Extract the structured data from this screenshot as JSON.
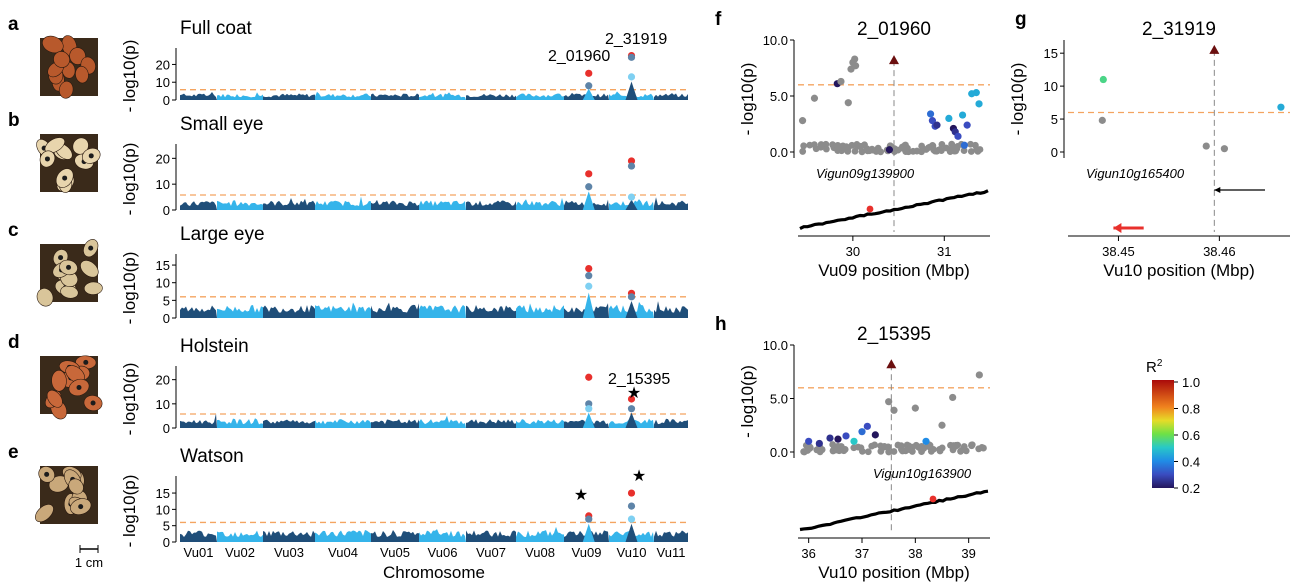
{
  "colors": {
    "chrom_dark": "#1f4e79",
    "chrom_light": "#35b4ea",
    "threshold": "#f4a460",
    "lead": "#e8302c",
    "peak_marker": "#6b0f0f",
    "gray_points": "#8c8c8c",
    "gene_track": "#000000"
  },
  "manhattan": {
    "ylabel": "- log10(p)",
    "xlabel": "Chromosome",
    "chromosomes": [
      "Vu01",
      "Vu02",
      "Vu03",
      "Vu04",
      "Vu05",
      "Vu06",
      "Vu07",
      "Vu08",
      "Vu09",
      "Vu10",
      "Vu11"
    ],
    "scale_bar": "1 cm",
    "panels": [
      {
        "letter": "a",
        "title": "Full coat",
        "seed_color": "#b8592c",
        "ticks": [
          "0",
          "10",
          "20"
        ],
        "annotations": [
          "2_01960",
          "2_31919"
        ]
      },
      {
        "letter": "b",
        "title": "Small eye",
        "seed_color": "#e8d5ad",
        "ticks": [
          "0",
          "10",
          "20"
        ],
        "annotations": []
      },
      {
        "letter": "c",
        "title": "Large eye",
        "seed_color": "#d9c59a",
        "ticks": [
          "0",
          "5",
          "10",
          "15"
        ],
        "annotations": []
      },
      {
        "letter": "d",
        "title": "Holstein",
        "seed_color": "#c8683a",
        "ticks": [
          "0",
          "10",
          "20"
        ],
        "annotations": [
          "2_15395",
          "★"
        ]
      },
      {
        "letter": "e",
        "title": "Watson",
        "seed_color": "#c9a87a",
        "ticks": [
          "0",
          "5",
          "10",
          "15"
        ],
        "annotations": [
          "★",
          "★"
        ]
      }
    ]
  },
  "regional": {
    "ylabel": "- log10(p)",
    "panels": [
      {
        "letter": "f",
        "title": "2_01960",
        "yticks": [
          "0.0",
          "5.0",
          "10.0"
        ],
        "gene": "Vigun09g139900",
        "xticks": [
          "30",
          "31"
        ],
        "xlabel": "Vu09 position (Mbp)"
      },
      {
        "letter": "g",
        "title": "2_31919",
        "yticks": [
          "0",
          "5",
          "10",
          "15"
        ],
        "gene": "Vigun10g165400",
        "xticks": [
          "38.45",
          "38.46"
        ],
        "xlabel": "Vu10 position (Mbp)"
      },
      {
        "letter": "h",
        "title": "2_15395",
        "yticks": [
          "0.0",
          "5.0",
          "10.0"
        ],
        "gene": "Vigun10g163900",
        "xticks": [
          "36",
          "37",
          "38",
          "39"
        ],
        "xlabel": "Vu10 position (Mbp)"
      }
    ]
  },
  "legend": {
    "title": "R2",
    "ticks": [
      "1.0",
      "0.8",
      "0.6",
      "0.4",
      "0.2"
    ]
  },
  "chart_data": [
    {
      "type": "scatter",
      "panel": "a",
      "title": "Full coat",
      "xlabel": "Chromosome",
      "ylabel": "- log10(p)",
      "categories": [
        "Vu01",
        "Vu02",
        "Vu03",
        "Vu04",
        "Vu05",
        "Vu06",
        "Vu07",
        "Vu08",
        "Vu09",
        "Vu10",
        "Vu11"
      ],
      "ylim": [
        0,
        27
      ],
      "threshold": 5.8,
      "peaks": [
        {
          "chrom": "Vu09",
          "values": [
            15,
            8
          ]
        },
        {
          "chrom": "Vu10",
          "values": [
            25,
            24,
            13
          ]
        }
      ]
    },
    {
      "type": "scatter",
      "panel": "b",
      "title": "Small eye",
      "xlabel": "Chromosome",
      "ylabel": "- log10(p)",
      "categories": [
        "Vu01",
        "Vu02",
        "Vu03",
        "Vu04",
        "Vu05",
        "Vu06",
        "Vu07",
        "Vu08",
        "Vu09",
        "Vu10",
        "Vu11"
      ],
      "ylim": [
        0,
        24
      ],
      "threshold": 5.8,
      "peaks": [
        {
          "chrom": "Vu09",
          "values": [
            14,
            9
          ]
        },
        {
          "chrom": "Vu10",
          "values": [
            19,
            17,
            5
          ]
        }
      ]
    },
    {
      "type": "scatter",
      "panel": "c",
      "title": "Large eye",
      "xlabel": "Chromosome",
      "ylabel": "- log10(p)",
      "categories": [
        "Vu01",
        "Vu02",
        "Vu03",
        "Vu04",
        "Vu05",
        "Vu06",
        "Vu07",
        "Vu08",
        "Vu09",
        "Vu10",
        "Vu11"
      ],
      "ylim": [
        0,
        17
      ],
      "threshold": 6.0,
      "peaks": [
        {
          "chrom": "Vu09",
          "values": [
            14,
            12,
            9
          ]
        },
        {
          "chrom": "Vu10",
          "values": [
            7,
            6
          ]
        }
      ]
    },
    {
      "type": "scatter",
      "panel": "d",
      "title": "Holstein",
      "xlabel": "Chromosome",
      "ylabel": "- log10(p)",
      "categories": [
        "Vu01",
        "Vu02",
        "Vu03",
        "Vu04",
        "Vu05",
        "Vu06",
        "Vu07",
        "Vu08",
        "Vu09",
        "Vu10",
        "Vu11"
      ],
      "ylim": [
        0,
        24
      ],
      "threshold": 5.8,
      "peaks": [
        {
          "chrom": "Vu09",
          "values": [
            21,
            10,
            8
          ]
        },
        {
          "chrom": "Vu10",
          "values": [
            12,
            8
          ]
        }
      ]
    },
    {
      "type": "scatter",
      "panel": "e",
      "title": "Watson",
      "xlabel": "Chromosome",
      "ylabel": "- log10(p)",
      "categories": [
        "Vu01",
        "Vu02",
        "Vu03",
        "Vu04",
        "Vu05",
        "Vu06",
        "Vu07",
        "Vu08",
        "Vu09",
        "Vu10",
        "Vu11"
      ],
      "ylim": [
        0,
        19
      ],
      "threshold": 6.0,
      "peaks": [
        {
          "chrom": "Vu09",
          "values": [
            8,
            7
          ]
        },
        {
          "chrom": "Vu10",
          "values": [
            15,
            11,
            7
          ]
        }
      ]
    },
    {
      "type": "scatter",
      "panel": "f",
      "title": "2_01960",
      "xlabel": "Vu09 position (Mbp)",
      "ylabel": "- log10(p)",
      "xlim": [
        29.4,
        31.5
      ],
      "ylim": [
        0,
        10
      ],
      "threshold": 6.0,
      "lead": {
        "x": 30.45,
        "y": 8.2
      },
      "points": [
        {
          "x": 29.45,
          "y": 2.8,
          "r2": null
        },
        {
          "x": 29.58,
          "y": 4.8,
          "r2": null
        },
        {
          "x": 29.83,
          "y": 6.1,
          "r2": 0.2
        },
        {
          "x": 29.87,
          "y": 6.3,
          "r2": null
        },
        {
          "x": 29.95,
          "y": 4.4,
          "r2": null
        },
        {
          "x": 29.98,
          "y": 7.4,
          "r2": null
        },
        {
          "x": 30.0,
          "y": 8.0,
          "r2": null
        },
        {
          "x": 30.02,
          "y": 8.3,
          "r2": null
        },
        {
          "x": 30.03,
          "y": 7.7,
          "r2": null
        },
        {
          "x": 30.4,
          "y": 0.2,
          "r2": 0.2
        },
        {
          "x": 30.85,
          "y": 3.4,
          "r2": 0.35
        },
        {
          "x": 30.87,
          "y": 2.8,
          "r2": 0.3
        },
        {
          "x": 30.9,
          "y": 2.3,
          "r2": 0.3
        },
        {
          "x": 30.92,
          "y": 2.4,
          "r2": 0.25
        },
        {
          "x": 31.05,
          "y": 3.0,
          "r2": 0.45
        },
        {
          "x": 31.1,
          "y": 2.1,
          "r2": 0.2
        },
        {
          "x": 31.12,
          "y": 1.8,
          "r2": 0.25
        },
        {
          "x": 31.15,
          "y": 1.4,
          "r2": 0.3
        },
        {
          "x": 31.2,
          "y": 3.3,
          "r2": 0.45
        },
        {
          "x": 31.25,
          "y": 2.4,
          "r2": 0.3
        },
        {
          "x": 31.3,
          "y": 5.2,
          "r2": 0.45
        },
        {
          "x": 31.35,
          "y": 5.3,
          "r2": 0.45
        },
        {
          "x": 31.38,
          "y": 4.3,
          "r2": 0.45
        },
        {
          "x": 31.22,
          "y": 0.6,
          "r2": 0.35
        }
      ]
    },
    {
      "type": "scatter",
      "panel": "g",
      "title": "2_31919",
      "xlabel": "Vu10 position (Mbp)",
      "ylabel": "- log10(p)",
      "xlim": [
        38.445,
        38.467
      ],
      "ylim": [
        0,
        17
      ],
      "threshold": 6.0,
      "lead": {
        "x": 38.4595,
        "y": 15.5
      },
      "points": [
        {
          "x": 38.4485,
          "y": 11.0,
          "r2": 0.55
        },
        {
          "x": 38.4484,
          "y": 4.8,
          "r2": null
        },
        {
          "x": 38.4587,
          "y": 0.9,
          "r2": null
        },
        {
          "x": 38.4605,
          "y": 0.5,
          "r2": null
        },
        {
          "x": 38.4661,
          "y": 6.8,
          "r2": 0.45
        }
      ]
    },
    {
      "type": "scatter",
      "panel": "h",
      "title": "2_15395",
      "xlabel": "Vu10 position (Mbp)",
      "ylabel": "- log10(p)",
      "xlim": [
        35.8,
        39.4
      ],
      "ylim": [
        0,
        10
      ],
      "threshold": 6.0,
      "lead": {
        "x": 37.55,
        "y": 8.2
      },
      "points": [
        {
          "x": 36.0,
          "y": 1.0,
          "r2": 0.3
        },
        {
          "x": 36.2,
          "y": 0.8,
          "r2": 0.25
        },
        {
          "x": 36.4,
          "y": 1.3,
          "r2": 0.25
        },
        {
          "x": 36.55,
          "y": 1.2,
          "r2": 0.2
        },
        {
          "x": 36.7,
          "y": 1.5,
          "r2": 0.3
        },
        {
          "x": 36.85,
          "y": 1.0,
          "r2": 0.5
        },
        {
          "x": 37.0,
          "y": 1.9,
          "r2": 0.35
        },
        {
          "x": 37.1,
          "y": 2.4,
          "r2": 0.3
        },
        {
          "x": 37.25,
          "y": 1.6,
          "r2": 0.2
        },
        {
          "x": 37.5,
          "y": 4.7,
          "r2": null
        },
        {
          "x": 37.6,
          "y": 3.9,
          "r2": null
        },
        {
          "x": 38.0,
          "y": 4.1,
          "r2": null
        },
        {
          "x": 38.2,
          "y": 1.0,
          "r2": 0.4
        },
        {
          "x": 38.5,
          "y": 2.5,
          "r2": null
        },
        {
          "x": 38.7,
          "y": 5.1,
          "r2": null
        },
        {
          "x": 39.2,
          "y": 7.2,
          "r2": null
        }
      ]
    }
  ]
}
